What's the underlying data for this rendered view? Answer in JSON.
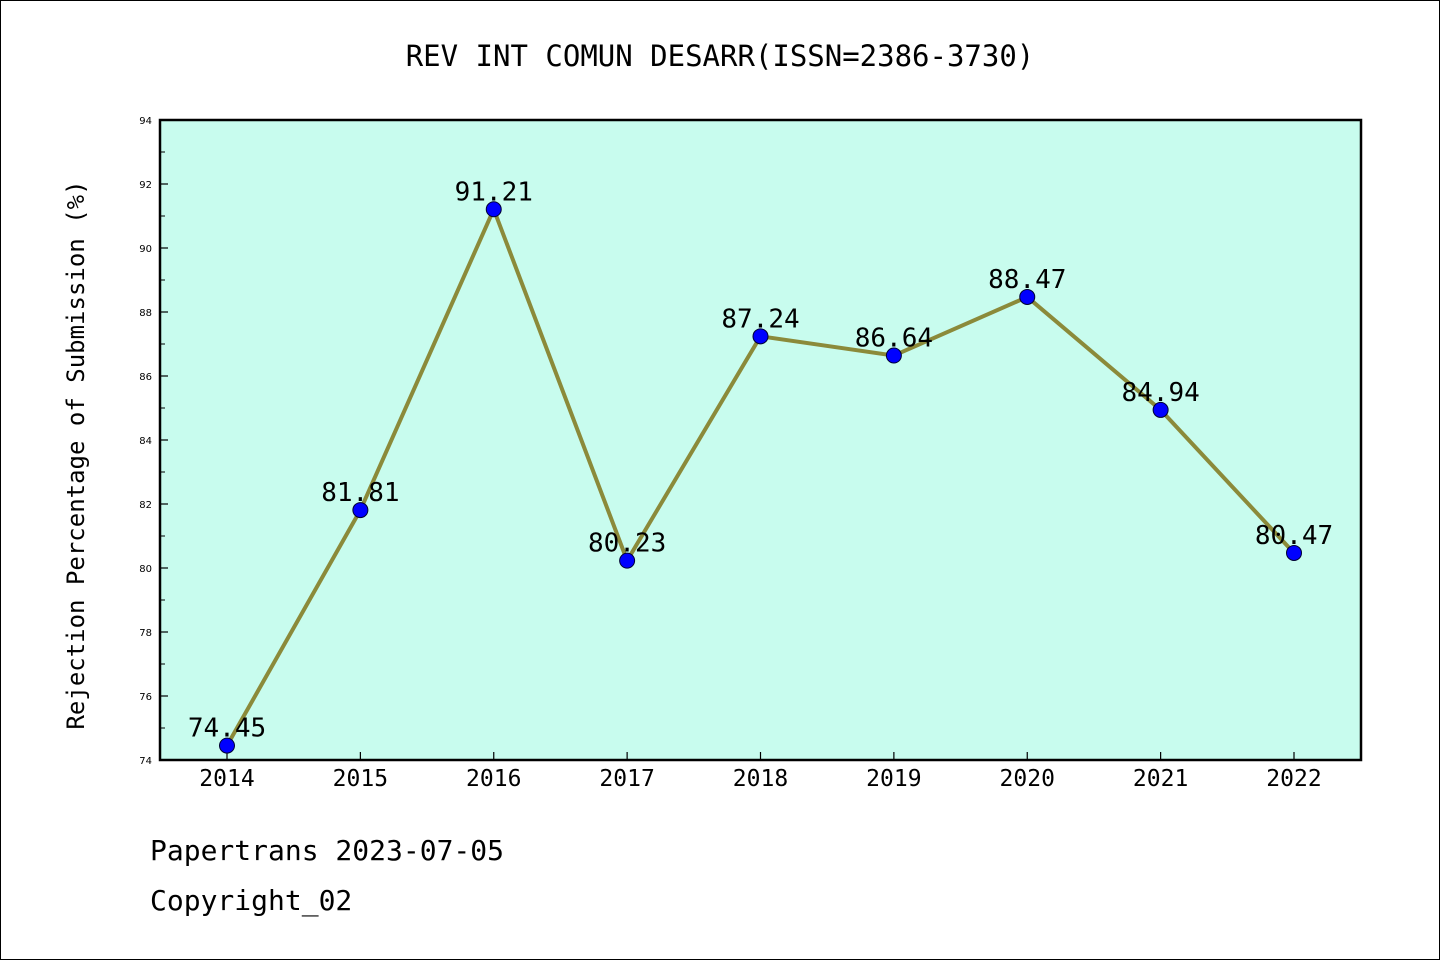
{
  "chart_data": {
    "type": "line",
    "title": "REV INT COMUN DESARR(ISSN=2386-3730)",
    "xlabel": "",
    "ylabel": "Rejection Percentage of Submission (%)",
    "x": [
      "2014",
      "2015",
      "2016",
      "2017",
      "2018",
      "2019",
      "2020",
      "2021",
      "2022"
    ],
    "series": [
      {
        "values": [
          74.45,
          81.81,
          91.21,
          80.23,
          87.24,
          86.64,
          88.47,
          84.94,
          80.47
        ],
        "labels": [
          "74.45",
          "81.81",
          "91.21",
          "80.23",
          "87.24",
          "86.64",
          "88.47",
          "84.94",
          "80.47"
        ]
      }
    ],
    "ylim": [
      74,
      94
    ],
    "yticks": [
      "74",
      "76",
      "78",
      "80",
      "82",
      "84",
      "86",
      "88",
      "90",
      "92",
      "94"
    ],
    "grid": false,
    "colors": {
      "plot_background": "#c8fcee",
      "line": "#8b8a3a",
      "marker": "#0000ff"
    }
  },
  "footer": {
    "line1": "Papertrans 2023-07-05",
    "line2": "Copyright_02"
  }
}
